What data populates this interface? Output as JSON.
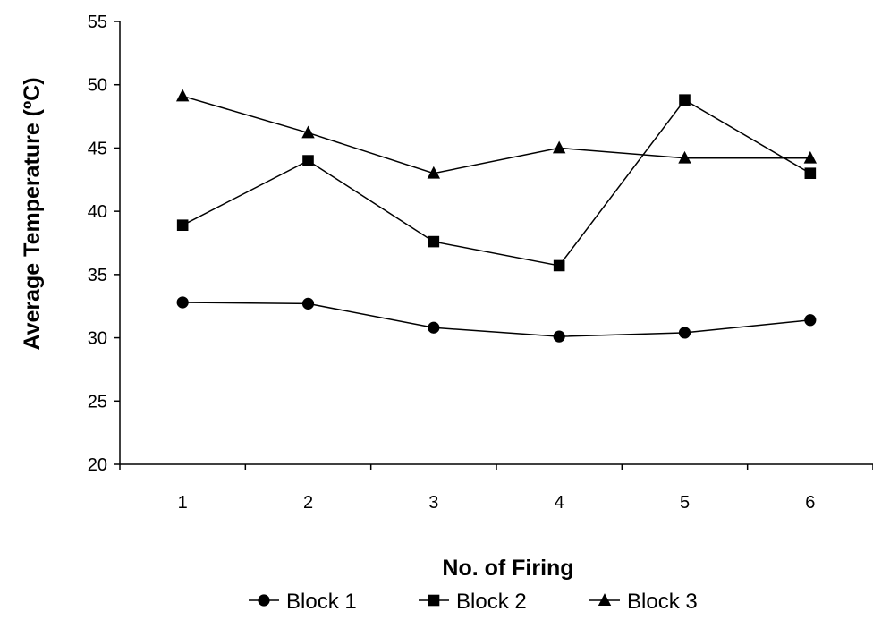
{
  "chart_data": {
    "type": "line",
    "xlabel": "No. of Firing",
    "ylabel": "Average Temperature (ºC)",
    "categories": [
      "1",
      "2",
      "3",
      "4",
      "5",
      "6"
    ],
    "ylim": [
      20,
      55
    ],
    "yticks": [
      "20",
      "25",
      "30",
      "35",
      "40",
      "45",
      "50",
      "55"
    ],
    "grid": false,
    "legend_position": "bottom",
    "series": [
      {
        "name": "Block 1",
        "marker": "circle",
        "color": "#000000",
        "values": [
          32.8,
          32.7,
          30.8,
          30.1,
          30.4,
          31.4
        ]
      },
      {
        "name": "Block 2",
        "marker": "square",
        "color": "#000000",
        "values": [
          38.9,
          44.0,
          37.6,
          35.7,
          48.8,
          43.0
        ]
      },
      {
        "name": "Block 3",
        "marker": "triangle",
        "color": "#000000",
        "values": [
          49.1,
          46.2,
          43.0,
          45.0,
          44.2,
          44.2
        ]
      }
    ]
  }
}
